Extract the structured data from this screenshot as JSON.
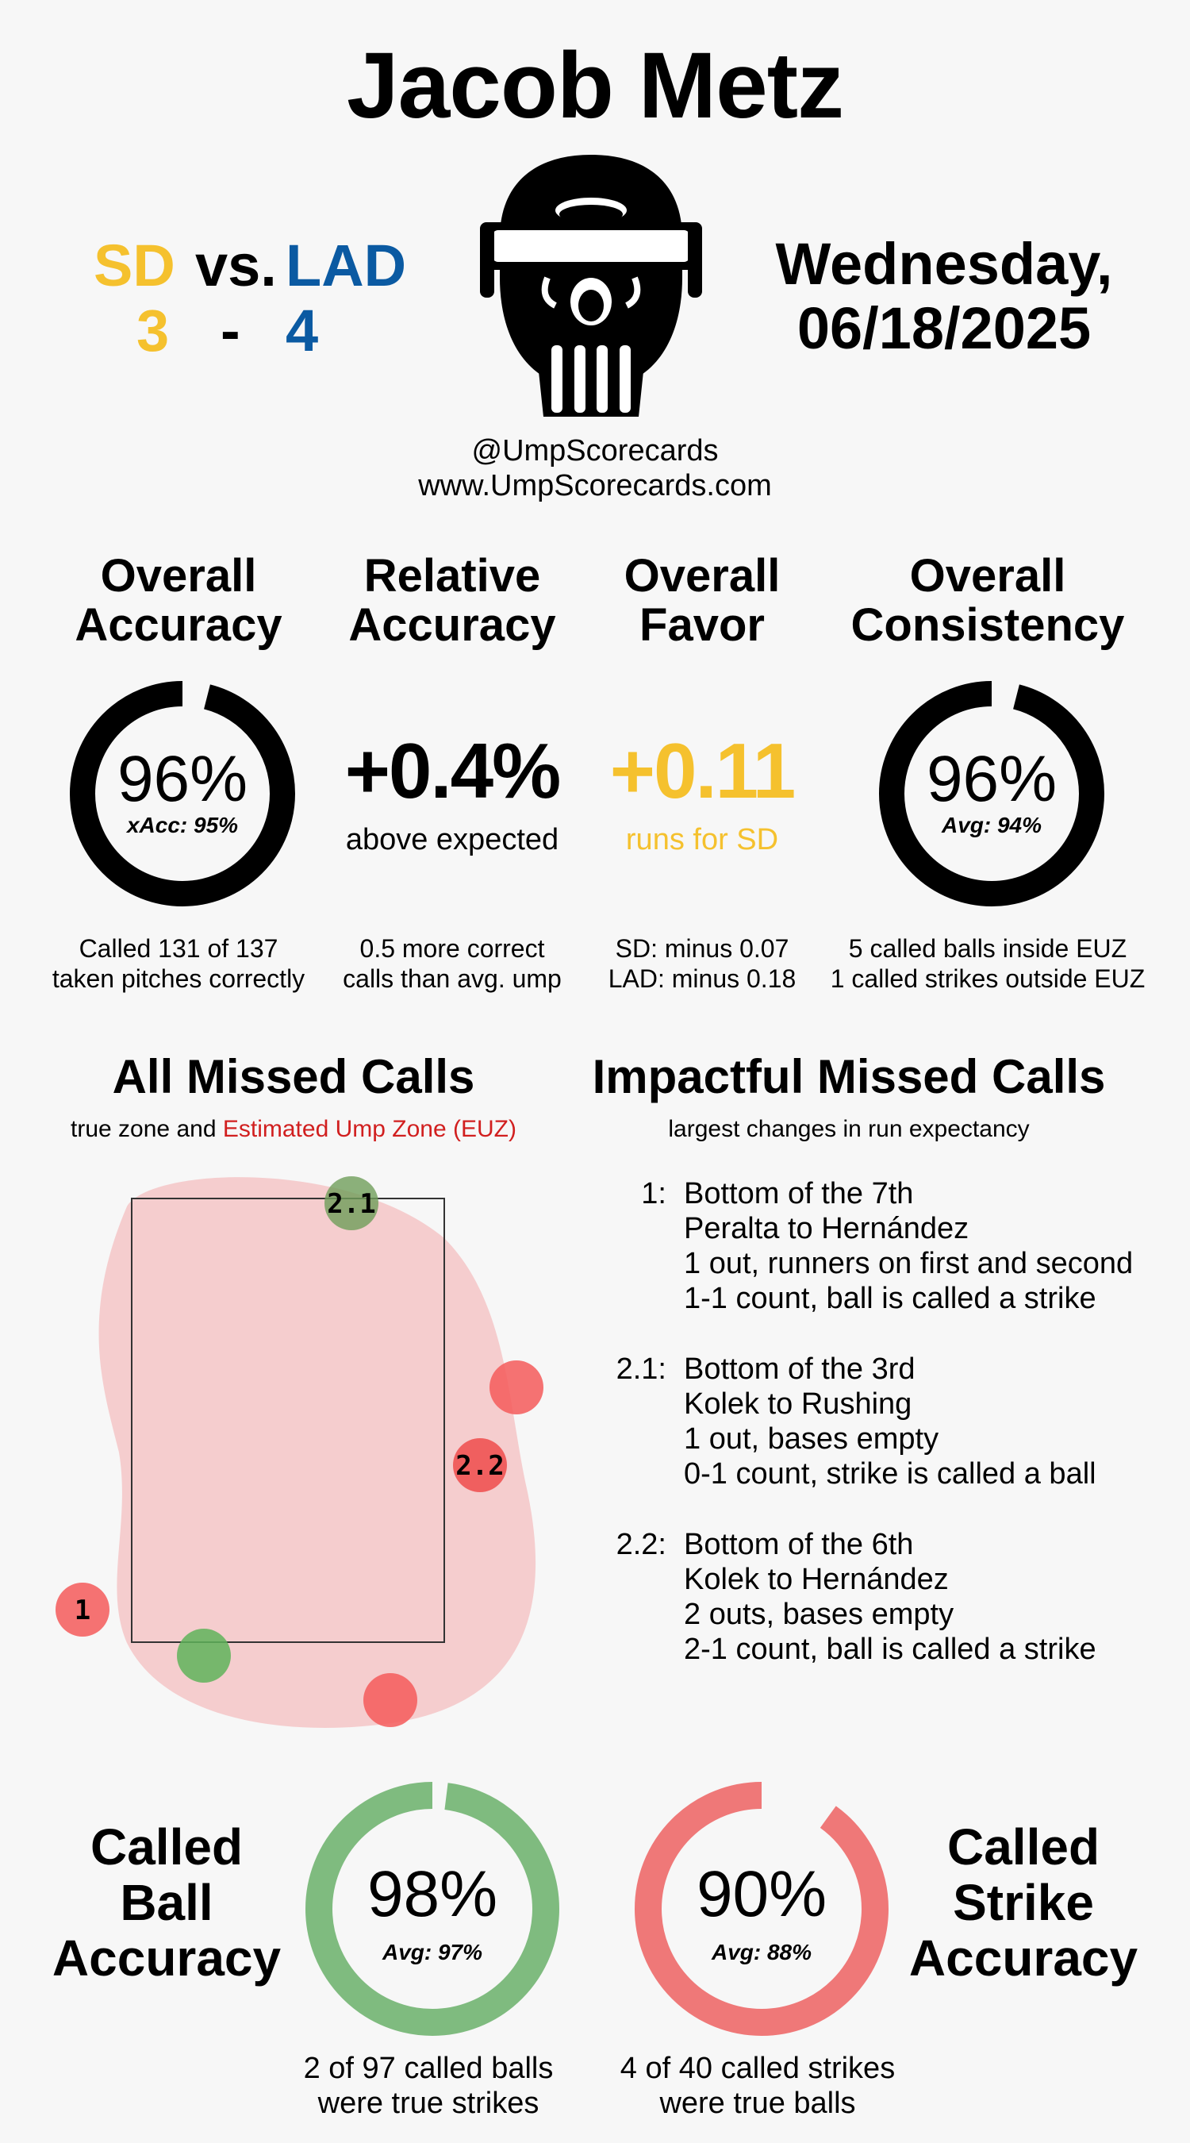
{
  "umpire_name": "Jacob Metz",
  "game": {
    "away": {
      "abbr": "SD",
      "score": "3",
      "color": "#f5c12e"
    },
    "vs_text": "vs.",
    "dash": "-",
    "home": {
      "abbr": "LAD",
      "score": "4",
      "color": "#0b5aa2"
    },
    "date_line1": "Wednesday,",
    "date_line2": "06/18/2025"
  },
  "credits": {
    "handle": "@UmpScorecards",
    "website": "www.UmpScorecards.com"
  },
  "stats": {
    "overall_accuracy": {
      "heading1": "Overall",
      "heading2": "Accuracy",
      "value": "96%",
      "sub": "xAcc: 95%",
      "fill": 0.96,
      "desc1": "Called 131 of 137",
      "desc2": "taken pitches correctly"
    },
    "relative_accuracy": {
      "heading1": "Relative",
      "heading2": "Accuracy",
      "value": "+0.4%",
      "sub": "above expected",
      "desc1": "0.5 more correct",
      "desc2": "calls than avg. ump"
    },
    "overall_favor": {
      "heading1": "Overall",
      "heading2": "Favor",
      "value": "+0.11",
      "sub": "runs for SD",
      "color": "#f5c12e",
      "desc1": "SD: minus 0.07",
      "desc2": "LAD: minus 0.18"
    },
    "overall_consistency": {
      "heading1": "Overall",
      "heading2": "Consistency",
      "value": "96%",
      "sub": "Avg: 94%",
      "fill": 0.96,
      "desc1": "5 called balls inside EUZ",
      "desc2": "1 called strikes outside EUZ"
    }
  },
  "all_missed_calls": {
    "heading": "All Missed Calls",
    "sub_plain": "true zone and",
    "sub_red": "Estimated Ump Zone (EUZ)",
    "pitches": [
      {
        "label": "2.1",
        "type": "green"
      },
      {
        "label": "",
        "type": "red"
      },
      {
        "label": "2.2",
        "type": "red"
      },
      {
        "label": "1",
        "type": "red"
      },
      {
        "label": "",
        "type": "green"
      },
      {
        "label": "",
        "type": "red"
      }
    ]
  },
  "impactful_missed_calls": {
    "heading": "Impactful Missed Calls",
    "sub": "largest changes in run expectancy",
    "items": [
      {
        "num": "1:",
        "lines": [
          "Bottom of the 7th",
          "Peralta to Hernández",
          "1 out, runners on first and second",
          "1-1 count, ball is called a strike"
        ]
      },
      {
        "num": "2.1:",
        "lines": [
          "Bottom of the 3rd",
          "Kolek to Rushing",
          "1 out, bases empty",
          "0-1 count, strike is called a ball"
        ]
      },
      {
        "num": "2.2:",
        "lines": [
          "Bottom of the 6th",
          "Kolek to Hernández",
          "2 outs, bases empty",
          "2-1 count, ball is called a strike"
        ]
      }
    ]
  },
  "called_ball": {
    "heading": [
      "Called",
      "Ball",
      "Accuracy"
    ],
    "value": "98%",
    "sub": "Avg: 97%",
    "fill": 0.98,
    "color": "#7fbb7f",
    "desc1": "2 of 97 called balls",
    "desc2": "were true strikes"
  },
  "called_strike": {
    "heading": [
      "Called",
      "Strike",
      "Accuracy"
    ],
    "value": "90%",
    "sub": "Avg: 88%",
    "fill": 0.9,
    "color": "#ef7878",
    "desc1": "4 of 40 called strikes",
    "desc2": "were true balls"
  }
}
